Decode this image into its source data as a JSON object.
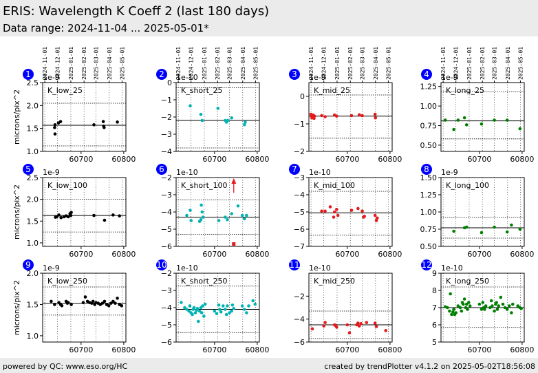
{
  "header": {
    "title": "ERIS: Wavelength K Coeff 2 (last 180 days)",
    "subtitle": "Data range: 2024-11-04 ... 2025-05-01*"
  },
  "footer": {
    "left": "powered by QC: www.eso.org/HC",
    "right": "created by trendPlotter v4.1.2 on 2025-05-02T18:56:08"
  },
  "colors": {
    "black": "#000000",
    "cyan": "#00b3b3",
    "red": "#e41a1c",
    "green": "#008000",
    "badge": "#0000ff"
  },
  "date_axis": {
    "labels": [
      "2024-11-01",
      "2024-12-01",
      "2025-01-01",
      "2025-02-01",
      "2025-03-01",
      "2025-04-01",
      "2025-05-01"
    ],
    "mjd": [
      60615,
      60645,
      60676,
      60707,
      60735,
      60766,
      60796
    ]
  },
  "chart_data": [
    {
      "type": "scatter",
      "number": "1",
      "label": "K_low_25",
      "ylabel": "microns/pix^2",
      "exponent": "1e-9",
      "color": "black",
      "xlim": [
        60610,
        60805
      ],
      "xticks": [
        60700,
        60800
      ],
      "ylim": [
        1.0,
        2.5
      ],
      "yticks": [
        "1.0",
        "1.5",
        "2.0",
        "2.5"
      ],
      "yvals": [
        1.0,
        1.5,
        2.0,
        2.5
      ],
      "ref": 1.57,
      "band": [
        1.12,
        2.05
      ],
      "points": [
        [
          60638,
          1.52
        ],
        [
          60639,
          1.58
        ],
        [
          60639,
          1.38
        ],
        [
          60647,
          1.62
        ],
        [
          60652,
          1.65
        ],
        [
          60730,
          1.58
        ],
        [
          60752,
          1.65
        ],
        [
          60753,
          1.55
        ],
        [
          60754,
          1.52
        ],
        [
          60785,
          1.64
        ]
      ]
    },
    {
      "type": "scatter",
      "number": "2",
      "label": "K_short_25",
      "exponent": "1e-10",
      "color": "cyan",
      "xlim": [
        60610,
        60805
      ],
      "xticks": [
        60700,
        60800
      ],
      "ylim": [
        -4,
        0
      ],
      "yticks": [
        "−4",
        "−3",
        "−2",
        "−1",
        "0"
      ],
      "yvals": [
        -4,
        -3,
        -2,
        -1,
        0
      ],
      "ref": -2.2,
      "band": [
        -3.8,
        -0.3
      ],
      "points": [
        [
          60643,
          -1.35
        ],
        [
          60668,
          -1.85
        ],
        [
          60671,
          -2.2
        ],
        [
          60708,
          -1.5
        ],
        [
          60725,
          -2.2
        ],
        [
          60728,
          -2.3
        ],
        [
          60731,
          -2.2
        ],
        [
          60740,
          -2.05
        ],
        [
          60770,
          -2.45
        ],
        [
          60772,
          -2.3
        ]
      ]
    },
    {
      "type": "scatter",
      "number": "3",
      "label": "K_mid_25",
      "exponent": "1e-9",
      "color": "red",
      "xlim": [
        60610,
        60805
      ],
      "xticks": [
        60700,
        60800
      ],
      "ylim": [
        -2,
        0.5
      ],
      "yticks": [
        "−2",
        "−1",
        "0"
      ],
      "yvals": [
        -2,
        -1,
        0
      ],
      "ref": -0.72,
      "band": [
        -1.52,
        0.05
      ],
      "points": [
        [
          60615,
          -0.65
        ],
        [
          60616,
          -0.72
        ],
        [
          60617,
          -0.78
        ],
        [
          60618,
          -0.7
        ],
        [
          60619,
          -0.75
        ],
        [
          60620,
          -0.68
        ],
        [
          60621,
          -0.72
        ],
        [
          60622,
          -0.8
        ],
        [
          60623,
          -0.72
        ],
        [
          60640,
          -0.7
        ],
        [
          60648,
          -0.74
        ],
        [
          60670,
          -0.68
        ],
        [
          60675,
          -0.72
        ],
        [
          60710,
          -0.7
        ],
        [
          60728,
          -0.67
        ],
        [
          60735,
          -0.7
        ],
        [
          60765,
          -0.65
        ],
        [
          60766,
          -0.78
        ]
      ]
    },
    {
      "type": "scatter",
      "number": "4",
      "label": "K_long_25",
      "exponent": "1e-9",
      "color": "green",
      "xlim": [
        60610,
        60805
      ],
      "xticks": [
        60700,
        60800
      ],
      "ylim": [
        0.42,
        1.3
      ],
      "yticks": [
        "0.50",
        "0.75",
        "1.00",
        "1.25"
      ],
      "yvals": [
        0.5,
        0.75,
        1.0,
        1.25
      ],
      "ref": 0.81,
      "band": [
        0.58,
        1.18
      ],
      "points": [
        [
          60620,
          0.82
        ],
        [
          60640,
          0.7
        ],
        [
          60650,
          0.82
        ],
        [
          60665,
          0.85
        ],
        [
          60670,
          0.76
        ],
        [
          60705,
          0.77
        ],
        [
          60735,
          0.82
        ],
        [
          60765,
          0.82
        ],
        [
          60795,
          0.71
        ]
      ]
    },
    {
      "type": "scatter",
      "number": "5",
      "label": "K_low_100",
      "ylabel": "microns/pix^2",
      "exponent": "1e-9",
      "color": "black",
      "xlim": [
        60610,
        60805
      ],
      "xticks": [
        60700,
        60800
      ],
      "ylim": [
        0.92,
        2.5
      ],
      "yticks": [
        "1.0",
        "1.5",
        "2.0",
        "2.5"
      ],
      "yvals": [
        1.0,
        1.5,
        2.0,
        2.5
      ],
      "ref": 1.63,
      "band": [
        1.25,
        2.0
      ],
      "points": [
        [
          60640,
          1.59
        ],
        [
          60643,
          1.6
        ],
        [
          60648,
          1.64
        ],
        [
          60653,
          1.58
        ],
        [
          60660,
          1.6
        ],
        [
          60665,
          1.62
        ],
        [
          60670,
          1.6
        ],
        [
          60674,
          1.67
        ],
        [
          60676,
          1.63
        ],
        [
          60677,
          1.7
        ],
        [
          60730,
          1.63
        ],
        [
          60755,
          1.52
        ],
        [
          60775,
          1.64
        ],
        [
          60790,
          1.62
        ]
      ]
    },
    {
      "type": "scatter",
      "number": "6",
      "label": "K_short_100",
      "exponent": "1e-10",
      "color": "cyan",
      "xlim": [
        60610,
        60805
      ],
      "xticks": [
        60700,
        60800
      ],
      "ylim": [
        -6,
        -2
      ],
      "yticks": [
        "−6",
        "−5",
        "−4",
        "−3",
        "−2"
      ],
      "yvals": [
        -6,
        -5,
        -4,
        -3,
        -2
      ],
      "ref": -4.3,
      "band": [
        -5.3,
        -3.3
      ],
      "points": [
        [
          60635,
          -4.2
        ],
        [
          60643,
          -3.9
        ],
        [
          60645,
          -4.5
        ],
        [
          60665,
          -4.55
        ],
        [
          60668,
          -4.45
        ],
        [
          60669,
          -3.6
        ],
        [
          60671,
          -4.0
        ],
        [
          60673,
          -4.3
        ],
        [
          60710,
          -4.5
        ],
        [
          60725,
          -4.3
        ],
        [
          60730,
          -4.45
        ],
        [
          60740,
          -4.1
        ],
        [
          60755,
          -3.65
        ],
        [
          60765,
          -4.2
        ],
        [
          60770,
          -4.4
        ],
        [
          60775,
          -4.2
        ]
      ],
      "red_points": [
        [
          60745,
          -2.2
        ],
        [
          60745,
          -5.9
        ]
      ]
    },
    {
      "type": "scatter",
      "number": "7",
      "label": "K_mid_100",
      "exponent": "1e-10",
      "color": "red",
      "xlim": [
        60610,
        60805
      ],
      "xticks": [
        60700,
        60800
      ],
      "ylim": [
        -7,
        -3
      ],
      "yticks": [
        "−7",
        "−6",
        "−5",
        "−4",
        "−3"
      ],
      "yvals": [
        -7,
        -6,
        -5,
        -4,
        -3
      ],
      "ref": -5.05,
      "band": [
        -6.35,
        -3.8
      ],
      "points": [
        [
          60640,
          -4.95
        ],
        [
          60648,
          -4.95
        ],
        [
          60660,
          -4.7
        ],
        [
          60668,
          -5.3
        ],
        [
          60670,
          -5.0
        ],
        [
          60675,
          -4.85
        ],
        [
          60678,
          -5.2
        ],
        [
          60710,
          -4.9
        ],
        [
          60725,
          -4.8
        ],
        [
          60735,
          -4.95
        ],
        [
          60738,
          -5.3
        ],
        [
          60740,
          -5.25
        ],
        [
          60765,
          -5.2
        ],
        [
          60768,
          -5.5
        ],
        [
          60770,
          -5.35
        ]
      ]
    },
    {
      "type": "scatter",
      "number": "8",
      "label": "K_long_100",
      "exponent": "1e-9",
      "color": "green",
      "xlim": [
        60610,
        60805
      ],
      "xticks": [
        60700,
        60800
      ],
      "ylim": [
        0.5,
        1.5
      ],
      "yticks": [
        "0.50",
        "0.75",
        "1.00",
        "1.25",
        "1.50"
      ],
      "yvals": [
        0.5,
        0.75,
        1.0,
        1.25,
        1.5
      ],
      "ref": 0.77,
      "band": [
        0.62,
        0.92
      ],
      "points": [
        [
          60640,
          0.72
        ],
        [
          60665,
          0.77
        ],
        [
          60670,
          0.78
        ],
        [
          60705,
          0.7
        ],
        [
          60735,
          0.78
        ],
        [
          60765,
          0.71
        ],
        [
          60775,
          0.81
        ],
        [
          60795,
          0.75
        ]
      ]
    },
    {
      "type": "scatter",
      "number": "9",
      "label": "K_low_250",
      "ylabel": "microns/pix^2",
      "exponent": "1e-9",
      "color": "black",
      "xlim": [
        60610,
        60805
      ],
      "xticks": [
        60700,
        60800
      ],
      "ylim": [
        0.9,
        2.0
      ],
      "yticks": [
        "1.0",
        "1.5",
        "2.0"
      ],
      "yvals": [
        1.0,
        1.5,
        2.0
      ],
      "ref": 1.52,
      "band": [
        1.33,
        1.78
      ],
      "points": [
        [
          60630,
          1.55
        ],
        [
          60638,
          1.5
        ],
        [
          60648,
          1.53
        ],
        [
          60652,
          1.5
        ],
        [
          60655,
          1.48
        ],
        [
          60665,
          1.55
        ],
        [
          60668,
          1.52
        ],
        [
          60670,
          1.53
        ],
        [
          60677,
          1.5
        ],
        [
          60705,
          1.53
        ],
        [
          60710,
          1.62
        ],
        [
          60715,
          1.55
        ],
        [
          60720,
          1.53
        ],
        [
          60725,
          1.52
        ],
        [
          60728,
          1.55
        ],
        [
          60732,
          1.5
        ],
        [
          60735,
          1.53
        ],
        [
          60740,
          1.52
        ],
        [
          60745,
          1.5
        ],
        [
          60750,
          1.52
        ],
        [
          60755,
          1.55
        ],
        [
          60760,
          1.5
        ],
        [
          60765,
          1.48
        ],
        [
          60770,
          1.52
        ],
        [
          60775,
          1.55
        ],
        [
          60780,
          1.52
        ],
        [
          60785,
          1.6
        ],
        [
          60790,
          1.5
        ],
        [
          60795,
          1.48
        ]
      ]
    },
    {
      "type": "scatter",
      "number": "10",
      "label": "K_short_250",
      "exponent": "1e-10",
      "color": "cyan",
      "xlim": [
        60610,
        60805
      ],
      "xticks": [
        60700,
        60800
      ],
      "ylim": [
        -6,
        -2
      ],
      "yticks": [
        "−6",
        "−5",
        "−4",
        "−3",
        "−2"
      ],
      "yvals": [
        -6,
        -5,
        -4,
        -3,
        -2
      ],
      "ref": -4.1,
      "band": [
        -5.45,
        -2.75
      ],
      "points": [
        [
          60622,
          -3.7
        ],
        [
          60630,
          -4.0
        ],
        [
          60635,
          -4.1
        ],
        [
          60640,
          -4.2
        ],
        [
          60642,
          -3.9
        ],
        [
          60645,
          -4.3
        ],
        [
          60648,
          -4.4
        ],
        [
          60650,
          -4.1
        ],
        [
          60652,
          -4.0
        ],
        [
          60655,
          -4.3
        ],
        [
          60658,
          -4.15
        ],
        [
          60660,
          -4.05
        ],
        [
          60662,
          -4.8
        ],
        [
          60665,
          -4.2
        ],
        [
          60668,
          -4.0
        ],
        [
          60670,
          -4.3
        ],
        [
          60672,
          -3.9
        ],
        [
          60675,
          -4.5
        ],
        [
          60678,
          -3.8
        ],
        [
          60700,
          -4.2
        ],
        [
          60705,
          -4.35
        ],
        [
          60710,
          -3.85
        ],
        [
          60712,
          -4.1
        ],
        [
          60715,
          -4.25
        ],
        [
          60720,
          -3.9
        ],
        [
          60725,
          -4.1
        ],
        [
          60728,
          -4.4
        ],
        [
          60730,
          -3.9
        ],
        [
          60735,
          -4.3
        ],
        [
          60740,
          -4.2
        ],
        [
          60742,
          -3.85
        ],
        [
          60745,
          -4.05
        ],
        [
          60765,
          -3.9
        ],
        [
          60770,
          -4.1
        ],
        [
          60775,
          -4.3
        ],
        [
          60780,
          -3.9
        ],
        [
          60790,
          -3.6
        ],
        [
          60795,
          -3.8
        ]
      ]
    },
    {
      "type": "scatter",
      "number": "11",
      "label": "K_mid_250",
      "exponent": "1e-10",
      "color": "red",
      "xlim": [
        60610,
        60805
      ],
      "xticks": [
        60700,
        60800
      ],
      "ylim": [
        -6,
        0
      ],
      "yticks": [
        "−6",
        "−4",
        "−2"
      ],
      "yvals": [
        -6,
        -4,
        -2
      ],
      "ref": -4.5,
      "band": [
        -5.7,
        -3.3
      ],
      "points": [
        [
          60618,
          -4.85
        ],
        [
          60645,
          -4.6
        ],
        [
          60648,
          -4.3
        ],
        [
          60670,
          -4.5
        ],
        [
          60672,
          -4.55
        ],
        [
          60675,
          -4.7
        ],
        [
          60700,
          -4.5
        ],
        [
          60705,
          -5.2
        ],
        [
          60722,
          -4.5
        ],
        [
          60725,
          -4.35
        ],
        [
          60728,
          -4.6
        ],
        [
          60732,
          -4.4
        ],
        [
          60745,
          -4.3
        ],
        [
          60765,
          -4.35
        ],
        [
          60768,
          -4.65
        ],
        [
          60790,
          -5.0
        ]
      ]
    },
    {
      "type": "scatter",
      "number": "12",
      "label": "K_long_250",
      "exponent": "1e-10",
      "color": "green",
      "xlim": [
        60610,
        60805
      ],
      "xticks": [
        60700,
        60800
      ],
      "ylim": [
        5,
        9
      ],
      "yticks": [
        "5",
        "6",
        "7",
        "8",
        "9"
      ],
      "yvals": [
        5,
        6,
        7,
        8,
        9
      ],
      "ref": 7.0,
      "band": [
        5.85,
        8.2
      ],
      "points": [
        [
          60620,
          7.05
        ],
        [
          60625,
          7.0
        ],
        [
          60630,
          6.8
        ],
        [
          60632,
          7.8
        ],
        [
          60635,
          6.6
        ],
        [
          60638,
          6.75
        ],
        [
          60640,
          6.9
        ],
        [
          60642,
          6.6
        ],
        [
          60645,
          6.7
        ],
        [
          60650,
          7.1
        ],
        [
          60655,
          7.0
        ],
        [
          60658,
          6.8
        ],
        [
          60660,
          7.3
        ],
        [
          60662,
          7.2
        ],
        [
          60665,
          7.5
        ],
        [
          60668,
          7.0
        ],
        [
          60670,
          7.2
        ],
        [
          60672,
          6.9
        ],
        [
          60675,
          7.3
        ],
        [
          60678,
          7.1
        ],
        [
          60700,
          7.2
        ],
        [
          60705,
          6.9
        ],
        [
          60708,
          7.3
        ],
        [
          60710,
          7.0
        ],
        [
          60712,
          6.9
        ],
        [
          60715,
          7.1
        ],
        [
          60725,
          7.0
        ],
        [
          60728,
          7.4
        ],
        [
          60730,
          7.1
        ],
        [
          60735,
          6.8
        ],
        [
          60738,
          7.2
        ],
        [
          60740,
          7.3
        ],
        [
          60742,
          6.9
        ],
        [
          60745,
          7.1
        ],
        [
          60750,
          7.6
        ],
        [
          60755,
          7.2
        ],
        [
          60760,
          7.0
        ],
        [
          60765,
          6.9
        ],
        [
          60770,
          7.1
        ],
        [
          60775,
          6.7
        ],
        [
          60778,
          7.2
        ],
        [
          60790,
          7.1
        ],
        [
          60795,
          7.0
        ],
        [
          60798,
          6.95
        ]
      ]
    }
  ]
}
